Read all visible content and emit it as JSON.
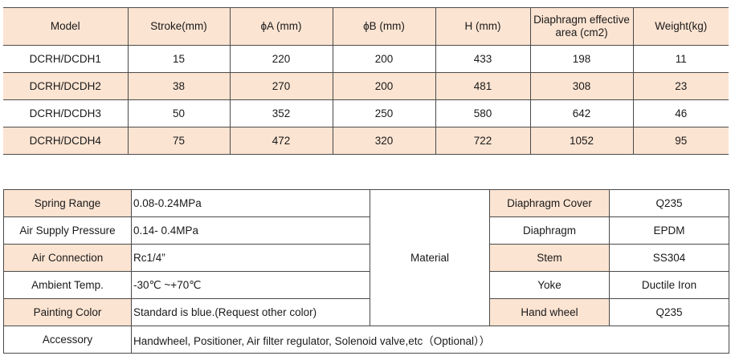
{
  "spec_table": {
    "headers": [
      "Model",
      "Stroke(mm)",
      "ϕA (mm)",
      "ϕB (mm)",
      "H (mm)",
      "Diaphragm effective area (cm2)",
      "Weight(kg)"
    ],
    "header_area_line1": "Diaphragm effective",
    "header_area_line2": "area (cm2)",
    "rows": [
      [
        "DCRH/DCDH1",
        "15",
        "220",
        "200",
        "433",
        "198",
        "11"
      ],
      [
        "DCRH/DCDH2",
        "38",
        "270",
        "200",
        "481",
        "308",
        "23"
      ],
      [
        "DCRH/DCDH3",
        "50",
        "352",
        "250",
        "580",
        "642",
        "46"
      ],
      [
        "DCRH/DCDH4",
        "75",
        "472",
        "320",
        "722",
        "1052",
        "95"
      ]
    ]
  },
  "param_table": {
    "spring_range_label": "Spring Range",
    "spring_range_value": "0.08-0.24MPa",
    "air_supply_label": "Air Supply Pressure",
    "air_supply_value": "0.14- 0.4MPa",
    "air_connection_label": "Air Connection",
    "air_connection_value": "Rc1/4”",
    "ambient_label": "Ambient Temp.",
    "ambient_value": "-30℃ ~+70℃",
    "painting_label": "Painting Color",
    "painting_value": "Standard is blue.(Request other color)",
    "material_label": "Material",
    "materials": [
      {
        "part": "Diaphragm  Cover",
        "material": "Q235"
      },
      {
        "part": "Diaphragm",
        "material": "EPDM"
      },
      {
        "part": "Stem",
        "material": "SS304"
      },
      {
        "part": "Yoke",
        "material": "Ductile Iron"
      },
      {
        "part": "Hand wheel",
        "material": "Q235"
      }
    ],
    "accessory_label": "Accessory",
    "accessory_value": "Handwheel, Positioner, Air filter regulator, Solenoid valve,etc（Optional））"
  }
}
